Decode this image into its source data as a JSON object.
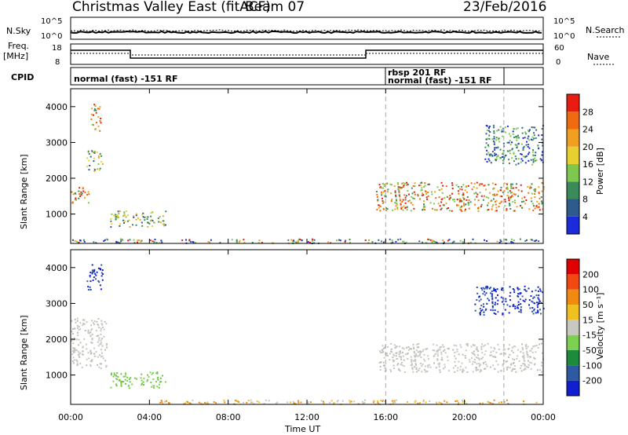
{
  "header": {
    "title": "Christmas Valley East (fitACF)",
    "beam": "Beam 07",
    "date": "23/Feb/2016"
  },
  "top_panels": {
    "nsky_label": "N.Sky",
    "nsearch_label": "N.Search",
    "noise_ticks": [
      "10^5",
      "10^0"
    ],
    "freq_label": "Freq.",
    "freq_unit": "[MHz]",
    "freq_ticks": [
      "18",
      "8"
    ],
    "nave_label": "Nave",
    "nave_ticks": [
      "60",
      "0"
    ],
    "cpid_label": "CPID",
    "cpid_segments": [
      {
        "text": "normal (fast) -151 RF"
      },
      {
        "text": "rbsp 201 RF"
      },
      {
        "text": "normal (fast) -151 RF"
      }
    ]
  },
  "chart_data": [
    {
      "type": "heatmap",
      "name": "power",
      "xlabel": "",
      "ylabel": "Slant Range [km]",
      "xlim": [
        0,
        24
      ],
      "ylim": [
        180,
        4500
      ],
      "y_ticks": [
        "1000",
        "2000",
        "3000",
        "4000"
      ],
      "colorbar_label": "Power [dB]",
      "colorbar_ticks": [
        "4",
        "8",
        "12",
        "16",
        "20",
        "24",
        "28"
      ],
      "colorbar_colors": [
        "#1a2bd9",
        "#2f5a8c",
        "#3b8a5a",
        "#7ec850",
        "#e8d030",
        "#f0a020",
        "#f06a10",
        "#e81c10"
      ],
      "markers_hours": [
        16,
        22
      ],
      "echo_regions": [
        {
          "t0": 0.0,
          "t1": 0.9,
          "r0": 1300,
          "r1": 1800,
          "level": "high"
        },
        {
          "t0": 0.8,
          "t1": 1.6,
          "r0": 2200,
          "r1": 2800,
          "level": "mid"
        },
        {
          "t0": 1.0,
          "t1": 1.5,
          "r0": 3300,
          "r1": 4100,
          "level": "high"
        },
        {
          "t0": 2.0,
          "t1": 4.8,
          "r0": 650,
          "r1": 1100,
          "level": "mid"
        },
        {
          "t0": 0.0,
          "t1": 24.0,
          "r0": 200,
          "r1": 320,
          "level": "mixed"
        },
        {
          "t0": 15.5,
          "t1": 24.0,
          "r0": 1100,
          "r1": 1900,
          "level": "high"
        },
        {
          "t0": 21.0,
          "t1": 24.0,
          "r0": 2400,
          "r1": 3500,
          "level": "low"
        }
      ]
    },
    {
      "type": "heatmap",
      "name": "velocity",
      "xlabel": "Time UT",
      "ylabel": "Slant Range [km]",
      "xlim": [
        0,
        24
      ],
      "ylim": [
        180,
        4500
      ],
      "x_ticks": [
        "00:00",
        "04:00",
        "08:00",
        "12:00",
        "16:00",
        "20:00",
        "00:00"
      ],
      "y_ticks": [
        "1000",
        "2000",
        "3000",
        "4000"
      ],
      "colorbar_label": "Velocity [m s⁻¹]",
      "colorbar_ticks": [
        "200",
        "100",
        "50",
        "15",
        "-15",
        "-50",
        "-100",
        "-200"
      ],
      "colorbar_colors": [
        "#1020d0",
        "#2d5aa0",
        "#1e8a3c",
        "#7ed050",
        "#c8c8c0",
        "#f0c020",
        "#f08a10",
        "#f04a10",
        "#e00000"
      ],
      "markers_hours": [
        16,
        22
      ],
      "echo_regions": [
        {
          "t0": 0.0,
          "t1": 1.8,
          "r0": 1200,
          "r1": 2600,
          "level": "gray"
        },
        {
          "t0": 0.8,
          "t1": 1.6,
          "r0": 3400,
          "r1": 4100,
          "level": "blue"
        },
        {
          "t0": 2.0,
          "t1": 4.8,
          "r0": 650,
          "r1": 1100,
          "level": "green"
        },
        {
          "t0": 4.5,
          "t1": 24.0,
          "r0": 200,
          "r1": 320,
          "level": "orange"
        },
        {
          "t0": 15.5,
          "t1": 24.0,
          "r0": 1100,
          "r1": 1900,
          "level": "gray"
        },
        {
          "t0": 20.5,
          "t1": 24.0,
          "r0": 2700,
          "r1": 3500,
          "level": "blue"
        }
      ]
    }
  ]
}
